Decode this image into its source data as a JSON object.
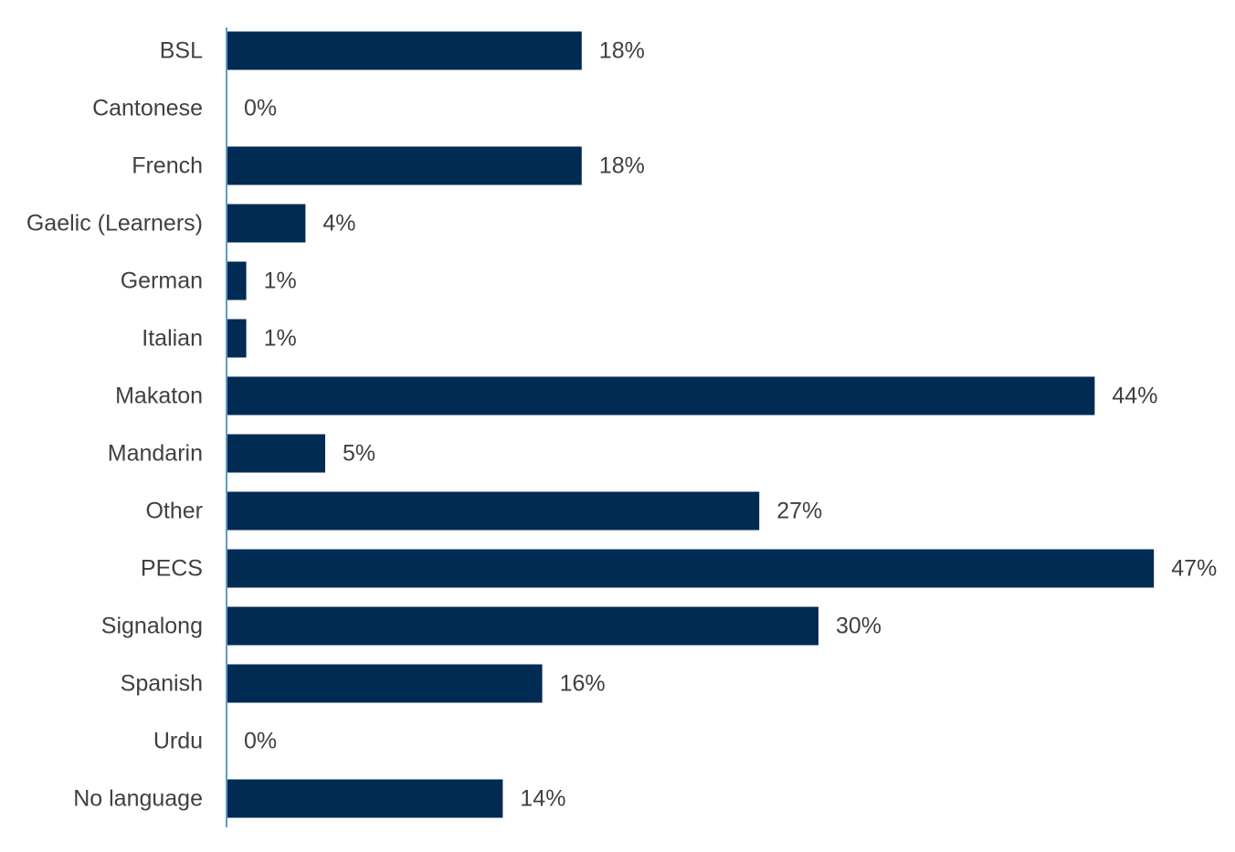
{
  "chart_data": {
    "type": "bar",
    "orientation": "horizontal",
    "categories": [
      "BSL",
      "Cantonese",
      "French",
      "Gaelic (Learners)",
      "German",
      "Italian",
      "Makaton",
      "Mandarin",
      "Other",
      "PECS",
      "Signalong",
      "Spanish",
      "Urdu",
      "No language"
    ],
    "values": [
      18,
      0,
      18,
      4,
      1,
      1,
      44,
      5,
      27,
      47,
      30,
      16,
      0,
      14
    ],
    "data_labels": [
      "18%",
      "0%",
      "18%",
      "4%",
      "1%",
      "1%",
      "44%",
      "5%",
      "27%",
      "47%",
      "30%",
      "16%",
      "0%",
      "14%"
    ],
    "unit": "%",
    "xlim": [
      0,
      50
    ],
    "grid": false,
    "legend": "none",
    "colors": {
      "bar": "#002b52",
      "axis": "#5b9bd5",
      "text": "#404040"
    }
  }
}
